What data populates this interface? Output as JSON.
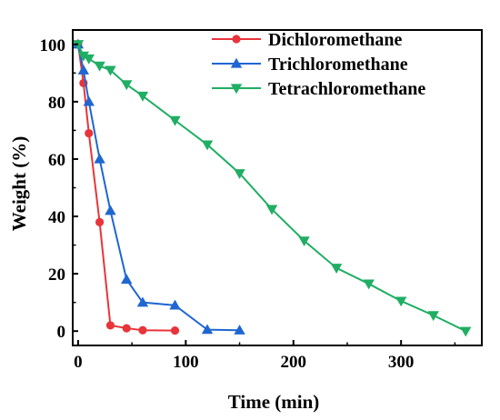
{
  "chart_data": {
    "type": "line",
    "xlabel": "Time (min)",
    "ylabel": "Weight (%)",
    "xlim": [
      -5,
      375
    ],
    "ylim": [
      -5,
      105
    ],
    "xticks": [
      0,
      100,
      200,
      300
    ],
    "yticks": [
      0,
      20,
      40,
      60,
      80,
      100
    ],
    "grid": false,
    "legend_position": "top-right",
    "series": [
      {
        "name": "Dichloromethane",
        "color": "#e8343a",
        "marker": "circle",
        "x": [
          0,
          5,
          10,
          20,
          30,
          45,
          60,
          90
        ],
        "y": [
          100,
          86.5,
          69,
          38,
          2,
          1,
          0.3,
          0.2
        ]
      },
      {
        "name": "Trichloromethane",
        "color": "#1f66d1",
        "marker": "triangle-up",
        "x": [
          0,
          5,
          10,
          20,
          30,
          45,
          60,
          90,
          120,
          150
        ],
        "y": [
          100,
          91,
          80,
          60,
          42,
          18,
          10,
          9,
          0.5,
          0.3
        ]
      },
      {
        "name": "Tetrachloromethane",
        "color": "#1fae63",
        "marker": "triangle-down",
        "x": [
          0,
          5,
          10,
          20,
          30,
          45,
          60,
          90,
          120,
          150,
          180,
          210,
          240,
          270,
          300,
          330,
          360
        ],
        "y": [
          100,
          96,
          95,
          92.5,
          91,
          86,
          82,
          73.5,
          65,
          55,
          42.5,
          31.5,
          22,
          16.5,
          10.5,
          5.5,
          0
        ]
      }
    ]
  }
}
